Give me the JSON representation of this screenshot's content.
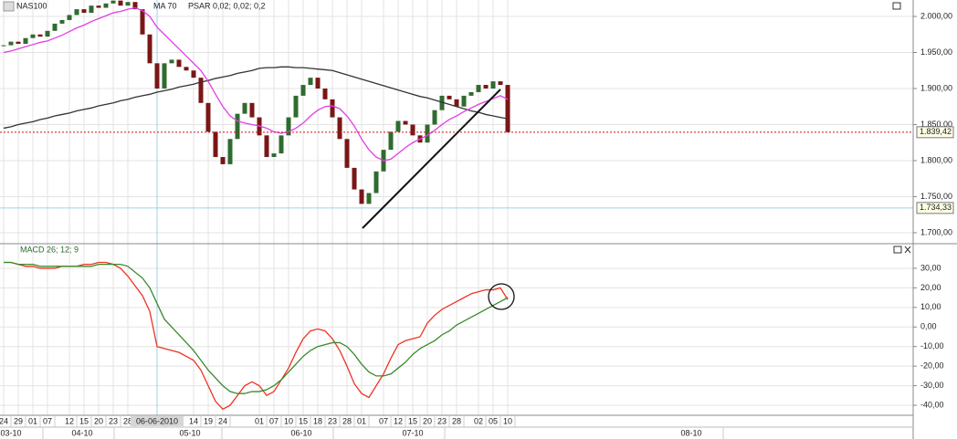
{
  "chart_data": [
    {
      "type": "candlestick",
      "title": "NAS100",
      "close": [
        1960,
        1965,
        1962,
        1970,
        1975,
        1972,
        1980,
        1990,
        1995,
        2002,
        2010,
        2005,
        2015,
        2012,
        2018,
        2022,
        2015,
        2020,
        2010,
        1975,
        1935,
        1900,
        1935,
        1940,
        1930,
        1925,
        1915,
        1880,
        1840,
        1805,
        1795,
        1830,
        1865,
        1880,
        1860,
        1835,
        1805,
        1810,
        1835,
        1860,
        1890,
        1905,
        1915,
        1900,
        1885,
        1860,
        1830,
        1790,
        1760,
        1740,
        1755,
        1785,
        1815,
        1840,
        1855,
        1850,
        1835,
        1825,
        1850,
        1870,
        1890,
        1885,
        1875,
        1890,
        1895,
        1905,
        1900,
        1910,
        1905,
        1839.42
      ],
      "up_color": "#2f6b2f",
      "down_color": "#7a1616",
      "series": [
        {
          "name": "MA 70",
          "color": "#333333",
          "values": [
            1845,
            1847,
            1850,
            1852,
            1854,
            1857,
            1859,
            1862,
            1864,
            1866,
            1869,
            1871,
            1873,
            1876,
            1878,
            1880,
            1883,
            1885,
            1888,
            1890,
            1892,
            1895,
            1897,
            1899,
            1902,
            1904,
            1906,
            1909,
            1911,
            1914,
            1916,
            1918,
            1921,
            1923,
            1925,
            1928,
            1929,
            1929,
            1930,
            1930,
            1929,
            1929,
            1928,
            1927,
            1926,
            1925,
            1922,
            1919,
            1916,
            1913,
            1910,
            1907,
            1904,
            1901,
            1898,
            1895,
            1892,
            1889,
            1887,
            1884,
            1881,
            1878,
            1875,
            1872,
            1869,
            1867,
            1864,
            1862,
            1860,
            1858
          ]
        },
        {
          "color": "#e23fe2",
          "values": [
            1950,
            1952,
            1955,
            1958,
            1961,
            1964,
            1966,
            1970,
            1974,
            1979,
            1984,
            1988,
            1993,
            1997,
            2001,
            2005,
            2007,
            2010,
            2012,
            2008,
            2000,
            1985,
            1975,
            1965,
            1955,
            1945,
            1935,
            1925,
            1910,
            1892,
            1875,
            1862,
            1855,
            1852,
            1850,
            1848,
            1845,
            1840,
            1838,
            1840,
            1845,
            1852,
            1862,
            1870,
            1875,
            1876,
            1872,
            1862,
            1848,
            1830,
            1815,
            1805,
            1800,
            1802,
            1810,
            1818,
            1825,
            1830,
            1835,
            1842,
            1850,
            1857,
            1862,
            1868,
            1873,
            1878,
            1882,
            1886,
            1890,
            1885
          ]
        }
      ],
      "indicator_label": "PSAR 0,02; 0,02; 0,2",
      "ylim": [
        1687.3,
        2022.8
      ],
      "yticks": [
        {
          "value": 1700,
          "label": "1.700,00"
        },
        {
          "value": 1750,
          "label": "1.750,00"
        },
        {
          "value": 1800,
          "label": "1.800,00"
        },
        {
          "value": 1850,
          "label": "1.850,00"
        },
        {
          "value": 1900,
          "label": "1.900,00"
        },
        {
          "value": 1950,
          "label": "1.950,00"
        },
        {
          "value": 2000,
          "label": "2.000,00"
        }
      ],
      "price_lines": [
        {
          "value": 1839.42,
          "label": "1.839,42",
          "color": "#d01010"
        },
        {
          "value": 1734.33,
          "label": "1.734,33",
          "color": "#9fd0ee"
        }
      ],
      "grid": true
    },
    {
      "type": "line",
      "title": "MACD 26; 12; 9",
      "categories": [
        "24",
        null,
        "29",
        null,
        "01",
        null,
        "07",
        null,
        null,
        "12",
        null,
        "15",
        null,
        "20",
        null,
        "23",
        null,
        "28",
        null,
        null,
        null,
        "06-06-2010",
        null,
        null,
        null,
        null,
        "14",
        null,
        "19",
        null,
        "24",
        null,
        null,
        null,
        null,
        "01",
        null,
        "07",
        null,
        "10",
        null,
        "15",
        null,
        "18",
        null,
        "23",
        null,
        "28",
        null,
        "01",
        null,
        null,
        "07",
        null,
        "12",
        null,
        "15",
        null,
        "20",
        null,
        "23",
        null,
        "28",
        null,
        null,
        "02",
        null,
        "05",
        null,
        "10"
      ],
      "crosshair": 21,
      "month_labels": [
        "03-10",
        "04-10",
        "05-10",
        "06-10",
        "07-10",
        "08-10"
      ],
      "series": [
        {
          "color": "#ee3322",
          "values": [
            33,
            33,
            32,
            31,
            31,
            30,
            30,
            30,
            31,
            31,
            31,
            32,
            32,
            33,
            33,
            32,
            30,
            26,
            21,
            16,
            8,
            -10,
            -11,
            -12,
            -13,
            -15,
            -17,
            -22,
            -30,
            -38,
            -42,
            -40,
            -35,
            -30,
            -28,
            -30,
            -35,
            -33,
            -27,
            -21,
            -13,
            -6,
            -2,
            -1,
            -2,
            -6,
            -12,
            -20,
            -29,
            -34,
            -36,
            -30,
            -24,
            -16,
            -9,
            -7,
            -6,
            -5,
            2,
            6,
            9,
            11,
            13,
            15,
            17,
            18,
            19,
            19,
            20,
            14
          ]
        },
        {
          "color": "#3a8a2a",
          "values": [
            33,
            33,
            32,
            32,
            32,
            31,
            31,
            31,
            31,
            31,
            31,
            31,
            31,
            32,
            32,
            32,
            32,
            31,
            28,
            25,
            20,
            12,
            4,
            0,
            -4,
            -8,
            -12,
            -17,
            -22,
            -26,
            -30,
            -33,
            -34,
            -34,
            -33,
            -33,
            -32,
            -30,
            -27,
            -23,
            -19,
            -15,
            -12,
            -10,
            -9,
            -8,
            -8,
            -10,
            -14,
            -19,
            -23,
            -25,
            -25,
            -24,
            -21,
            -18,
            -14,
            -11,
            -9,
            -7,
            -4,
            -2,
            1,
            3,
            5,
            7,
            9,
            11,
            13,
            15
          ]
        }
      ],
      "ylim": [
        -45.1,
        42.1
      ],
      "yticks": [
        {
          "value": -40,
          "label": "-40,00"
        },
        {
          "value": -30,
          "label": "-30,00"
        },
        {
          "value": -20,
          "label": "-20,00"
        },
        {
          "value": -10,
          "label": "-10,00"
        },
        {
          "value": 0,
          "label": "0,00"
        },
        {
          "value": 10,
          "label": "10,00"
        },
        {
          "value": 20,
          "label": "20,00"
        },
        {
          "value": 30,
          "label": "30,00"
        }
      ],
      "grid": true
    }
  ]
}
